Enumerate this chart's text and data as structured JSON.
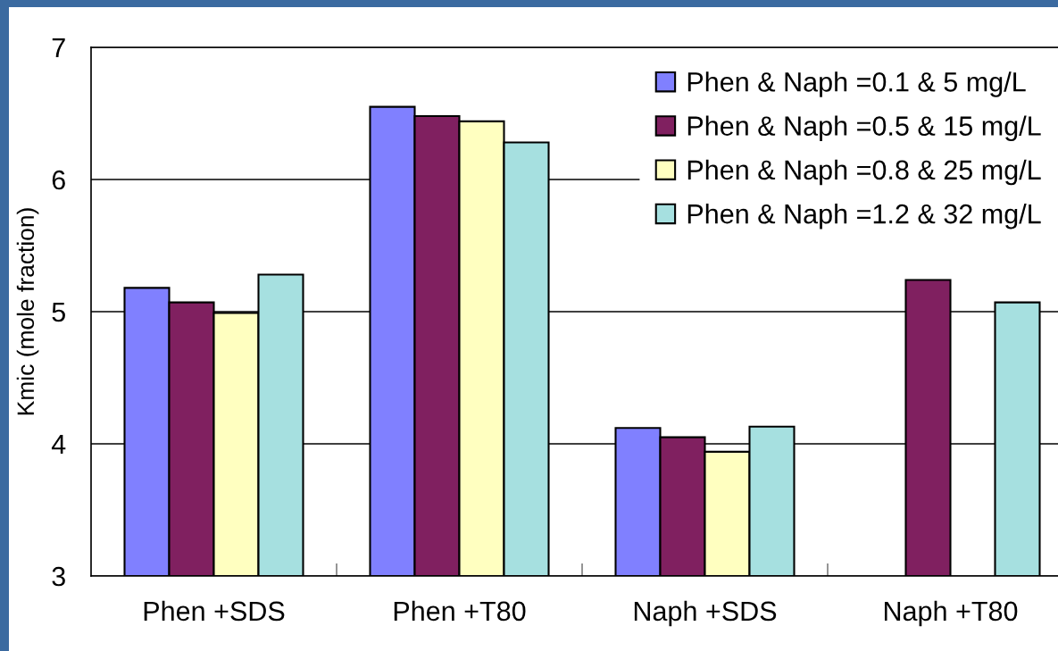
{
  "chart_data": {
    "type": "bar",
    "ylabel": "Kmic (mole fraction)",
    "categories": [
      "Phen +SDS",
      "Phen +T80",
      "Naph +SDS",
      "Naph +T80"
    ],
    "series": [
      {
        "name": "Phen & Naph =0.1 & 5 mg/L",
        "color": "#8080ff",
        "values": [
          5.18,
          6.55,
          4.12,
          null
        ]
      },
      {
        "name": "Phen & Naph =0.5 & 15 mg/L",
        "color": "#802060",
        "values": [
          5.07,
          6.48,
          4.05,
          5.24
        ]
      },
      {
        "name": "Phen & Naph =0.8 & 25 mg/L",
        "color": "#ffffc0",
        "values": [
          4.99,
          6.44,
          3.94,
          null
        ]
      },
      {
        "name": "Phen & Naph =1.2 & 32 mg/L",
        "color": "#a6e0e0",
        "values": [
          5.28,
          6.28,
          4.13,
          5.07
        ]
      }
    ],
    "ylim": [
      3,
      7
    ],
    "yticks": [
      3,
      4,
      5,
      6,
      7
    ],
    "grid": "y",
    "legend": "top right"
  }
}
